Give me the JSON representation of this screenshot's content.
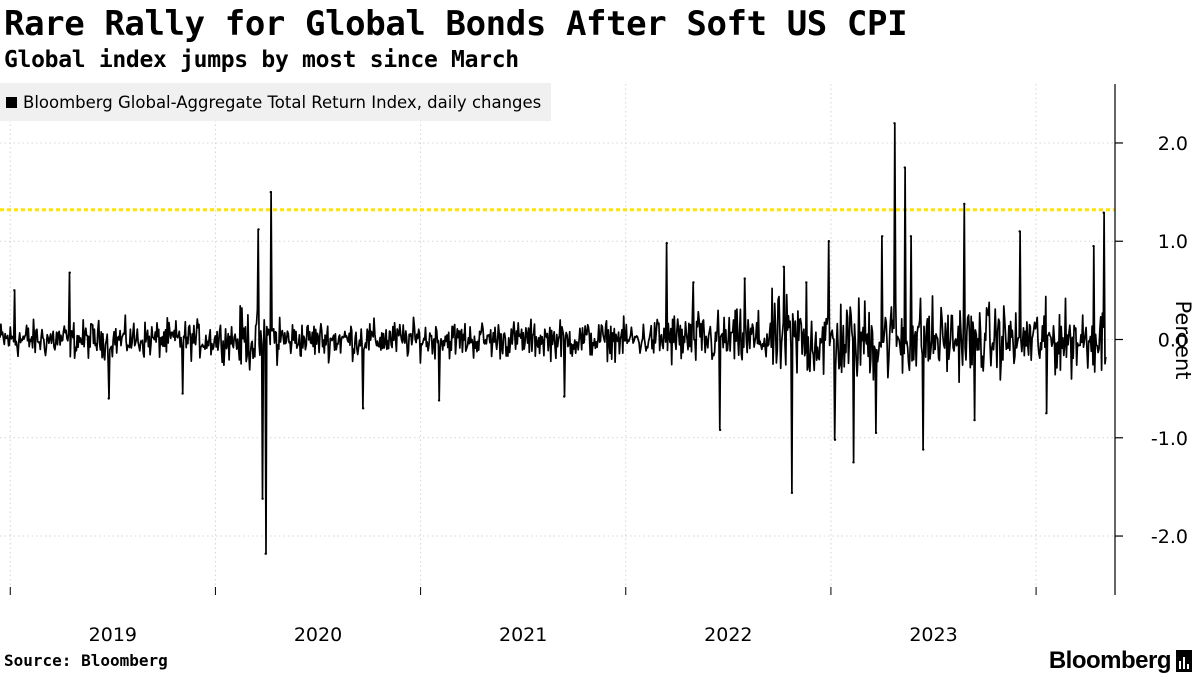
{
  "chart_data": {
    "type": "line",
    "title": "Rare Rally for Global Bonds After Soft US CPI",
    "subtitle": "Global index jumps by most since March",
    "legend_entry": "Bloomberg Global-Aggregate Total Return Index, daily changes",
    "ylabel": "Percent",
    "ylim": [
      -2.6,
      2.6
    ],
    "yticks": [
      2,
      1,
      0,
      -1,
      -2
    ],
    "ytick_labels": [
      "2.0",
      "1.0",
      "0.0",
      "-1.0",
      "-2.0"
    ],
    "xlim": [
      2018.45,
      2023.87
    ],
    "xticks": [
      2018.5,
      2019.5,
      2020.5,
      2021.5,
      2022.5,
      2023.5
    ],
    "xlabel_positions": [
      2019,
      2020,
      2021,
      2022,
      2023
    ],
    "xtick_labels": [
      "2019",
      "2020",
      "2021",
      "2022",
      "2023"
    ],
    "reference_line": {
      "y": 1.32,
      "color": "#ffe600",
      "style": "dotted"
    },
    "series": [
      {
        "name": "Bloomberg Global-Aggregate Total Return Index, daily changes",
        "color": "#000000",
        "spikes": [
          {
            "x": 2018.52,
            "y": 0.5
          },
          {
            "x": 2018.79,
            "y": 0.68
          },
          {
            "x": 2018.98,
            "y": -0.6
          },
          {
            "x": 2019.34,
            "y": -0.55
          },
          {
            "x": 2019.71,
            "y": 1.12
          },
          {
            "x": 2019.73,
            "y": -1.62
          },
          {
            "x": 2019.745,
            "y": -2.18
          },
          {
            "x": 2019.77,
            "y": 1.5
          },
          {
            "x": 2020.22,
            "y": -0.7
          },
          {
            "x": 2020.59,
            "y": -0.62
          },
          {
            "x": 2021.2,
            "y": -0.58
          },
          {
            "x": 2021.7,
            "y": 0.98
          },
          {
            "x": 2021.83,
            "y": 0.58
          },
          {
            "x": 2021.96,
            "y": -0.92
          },
          {
            "x": 2022.08,
            "y": 0.62
          },
          {
            "x": 2022.27,
            "y": 0.74
          },
          {
            "x": 2022.31,
            "y": -1.56
          },
          {
            "x": 2022.38,
            "y": 0.58
          },
          {
            "x": 2022.49,
            "y": 1.0
          },
          {
            "x": 2022.52,
            "y": -1.02
          },
          {
            "x": 2022.61,
            "y": -1.25
          },
          {
            "x": 2022.72,
            "y": -0.95
          },
          {
            "x": 2022.75,
            "y": 1.05
          },
          {
            "x": 2022.81,
            "y": 2.2
          },
          {
            "x": 2022.86,
            "y": 1.75
          },
          {
            "x": 2022.89,
            "y": 1.05
          },
          {
            "x": 2022.95,
            "y": -1.12
          },
          {
            "x": 2023.15,
            "y": 1.38
          },
          {
            "x": 2023.2,
            "y": -0.82
          },
          {
            "x": 2023.42,
            "y": 1.1
          },
          {
            "x": 2023.55,
            "y": -0.75
          },
          {
            "x": 2023.78,
            "y": 0.95
          },
          {
            "x": 2023.83,
            "y": 1.29
          }
        ]
      }
    ],
    "source": "Source: Bloomberg"
  },
  "brand": {
    "name": "Bloomberg",
    "icon": "bloomberg-terminal-icon"
  }
}
